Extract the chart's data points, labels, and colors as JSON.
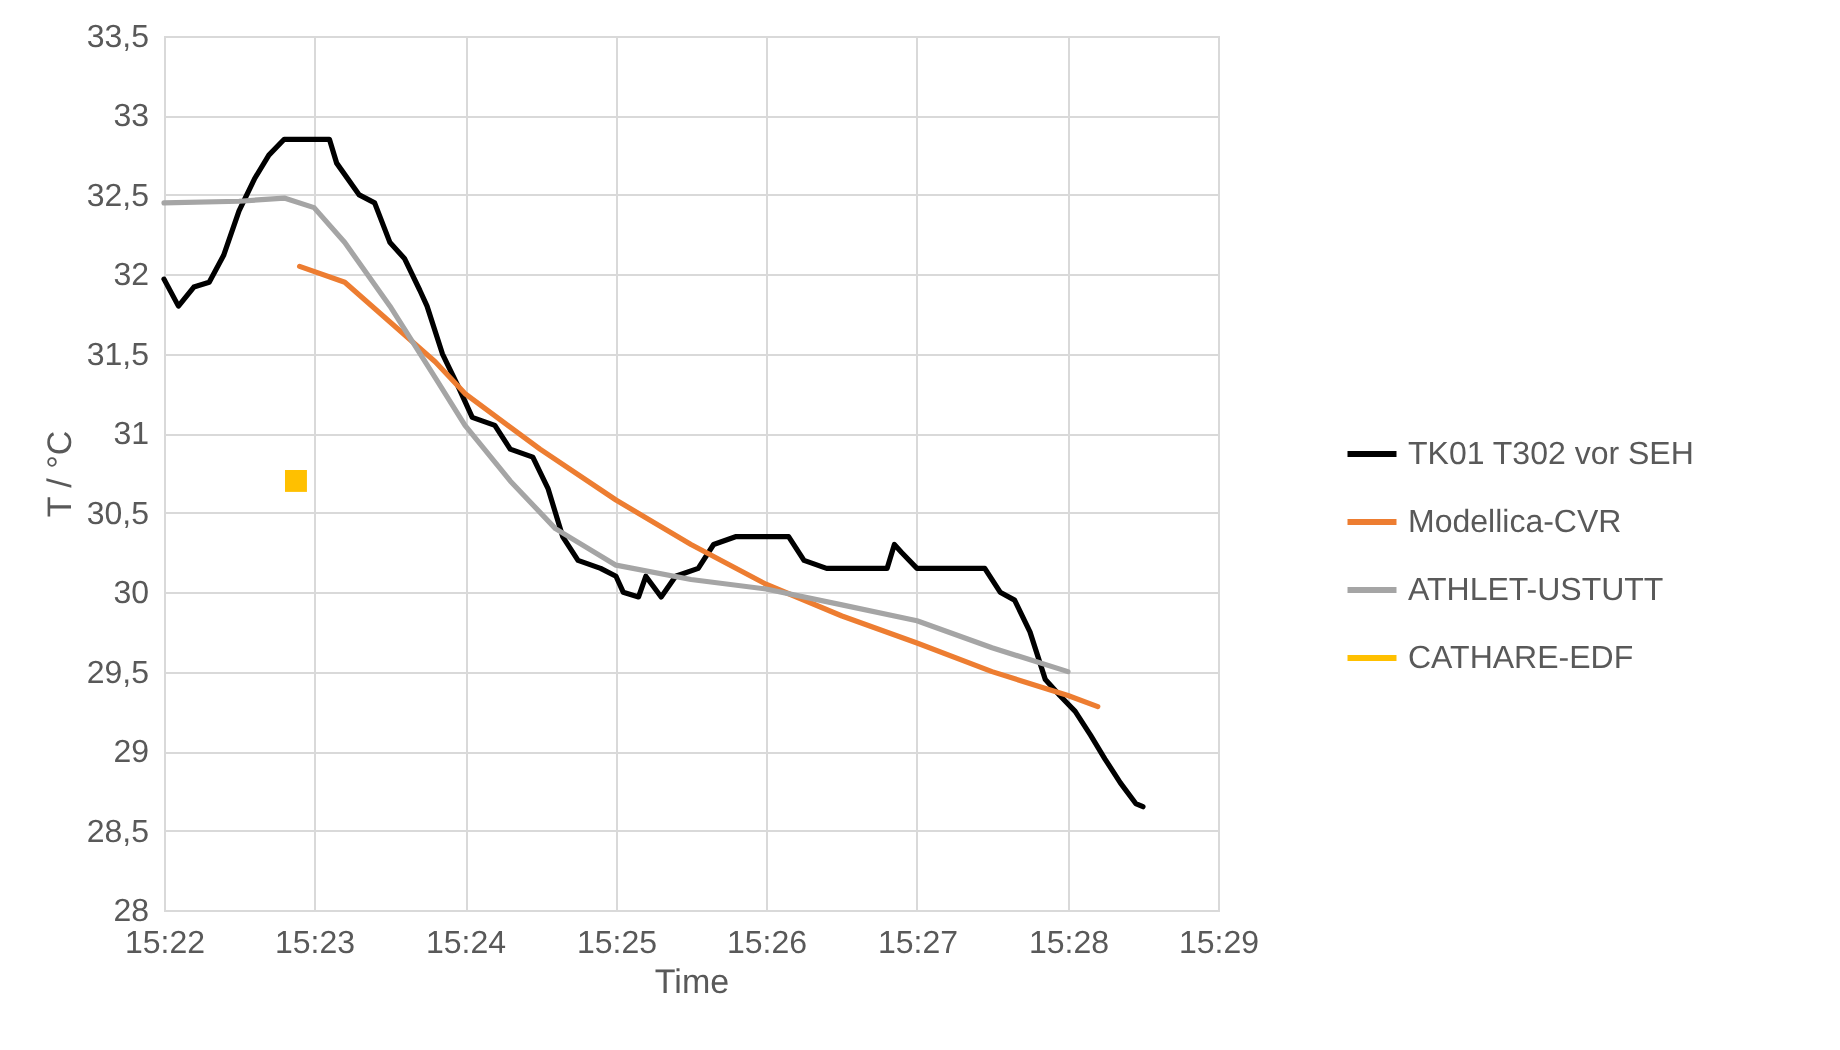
{
  "chart_data": {
    "type": "line",
    "xlabel": "Time",
    "ylabel": "T / °C",
    "legend": "right",
    "grid": true,
    "line_style": "solid",
    "marker": "none",
    "xlim": [
      15.3667,
      15.4833
    ],
    "ylim": [
      28,
      33.5
    ],
    "xticks": [
      {
        "value": 15.3667,
        "label": "15:22"
      },
      {
        "value": 15.3833,
        "label": "15:23"
      },
      {
        "value": 15.4,
        "label": "15:24"
      },
      {
        "value": 15.4167,
        "label": "15:25"
      },
      {
        "value": 15.4333,
        "label": "15:26"
      },
      {
        "value": 15.45,
        "label": "15:27"
      },
      {
        "value": 15.4667,
        "label": "15:28"
      },
      {
        "value": 15.4833,
        "label": "15:29"
      }
    ],
    "yticks": [
      28,
      {
        "value": 28.5,
        "label": "28,5"
      },
      29,
      {
        "value": 29.5,
        "label": "29,5"
      },
      30,
      {
        "value": 30.5,
        "label": "30,5"
      },
      31,
      {
        "value": 31.5,
        "label": "31,5"
      },
      32,
      {
        "value": 32.5,
        "label": "32,5"
      },
      33,
      {
        "value": 33.5,
        "label": "33,5"
      }
    ],
    "series": [
      {
        "name": "TK01 T302 vor SEH",
        "color": "#000000",
        "x": [
          15.3667,
          15.3683,
          15.37,
          15.3717,
          15.3733,
          15.375,
          15.3767,
          15.3783,
          15.38,
          15.3833,
          15.385,
          15.3858,
          15.3883,
          15.39,
          15.3917,
          15.3933,
          15.395,
          15.3958,
          15.3975,
          15.3992,
          15.4008,
          15.4033,
          15.405,
          15.4075,
          15.4092,
          15.4108,
          15.4125,
          15.415,
          15.4167,
          15.4175,
          15.4192,
          15.42,
          15.4217,
          15.4233,
          15.4258,
          15.4275,
          15.43,
          15.4358,
          15.4375,
          15.44,
          15.4467,
          15.4475,
          15.4483,
          15.45,
          15.4575,
          15.4592,
          15.4608,
          15.4625,
          15.4642,
          15.4658,
          15.4675,
          15.4692,
          15.4708,
          15.4725,
          15.4742,
          15.475
        ],
        "values": [
          31.97,
          31.8,
          31.92,
          31.95,
          32.12,
          32.4,
          32.6,
          32.75,
          32.85,
          32.85,
          32.85,
          32.7,
          32.5,
          32.45,
          32.2,
          32.1,
          31.9,
          31.8,
          31.5,
          31.3,
          31.1,
          31.05,
          30.9,
          30.85,
          30.65,
          30.35,
          30.2,
          30.15,
          30.1,
          30.0,
          29.97,
          30.1,
          29.97,
          30.1,
          30.15,
          30.3,
          30.35,
          30.35,
          30.2,
          30.15,
          30.15,
          30.3,
          30.25,
          30.15,
          30.15,
          30.0,
          29.95,
          29.75,
          29.45,
          29.35,
          29.25,
          29.1,
          28.95,
          28.8,
          28.67,
          28.65
        ]
      },
      {
        "name": "Modellica-CVR",
        "color": "#ed7d31",
        "x": [
          15.3817,
          15.3867,
          15.3917,
          15.3967,
          15.4,
          15.4083,
          15.4167,
          15.425,
          15.4333,
          15.4417,
          15.45,
          15.4583,
          15.4667,
          15.47
        ],
        "values": [
          32.05,
          31.95,
          31.7,
          31.45,
          31.25,
          30.9,
          30.58,
          30.3,
          30.05,
          29.85,
          29.68,
          29.5,
          29.35,
          29.28
        ]
      },
      {
        "name": "ATHLET-USTUTT",
        "color": "#a5a5a5",
        "x": [
          15.3667,
          15.375,
          15.38,
          15.3833,
          15.3867,
          15.3917,
          15.3967,
          15.4,
          15.405,
          15.41,
          15.4167,
          15.425,
          15.4333,
          15.4417,
          15.45,
          15.4583,
          15.4667
        ],
        "values": [
          32.45,
          32.46,
          32.48,
          32.42,
          32.2,
          31.8,
          31.35,
          31.05,
          30.7,
          30.4,
          30.17,
          30.08,
          30.02,
          29.92,
          29.82,
          29.65,
          29.5
        ]
      },
      {
        "name": "CATHARE-EDF",
        "type": "scatter",
        "marker": "square",
        "color": "#ffc000",
        "x": [
          15.3813
        ],
        "values": [
          30.7
        ]
      }
    ]
  }
}
